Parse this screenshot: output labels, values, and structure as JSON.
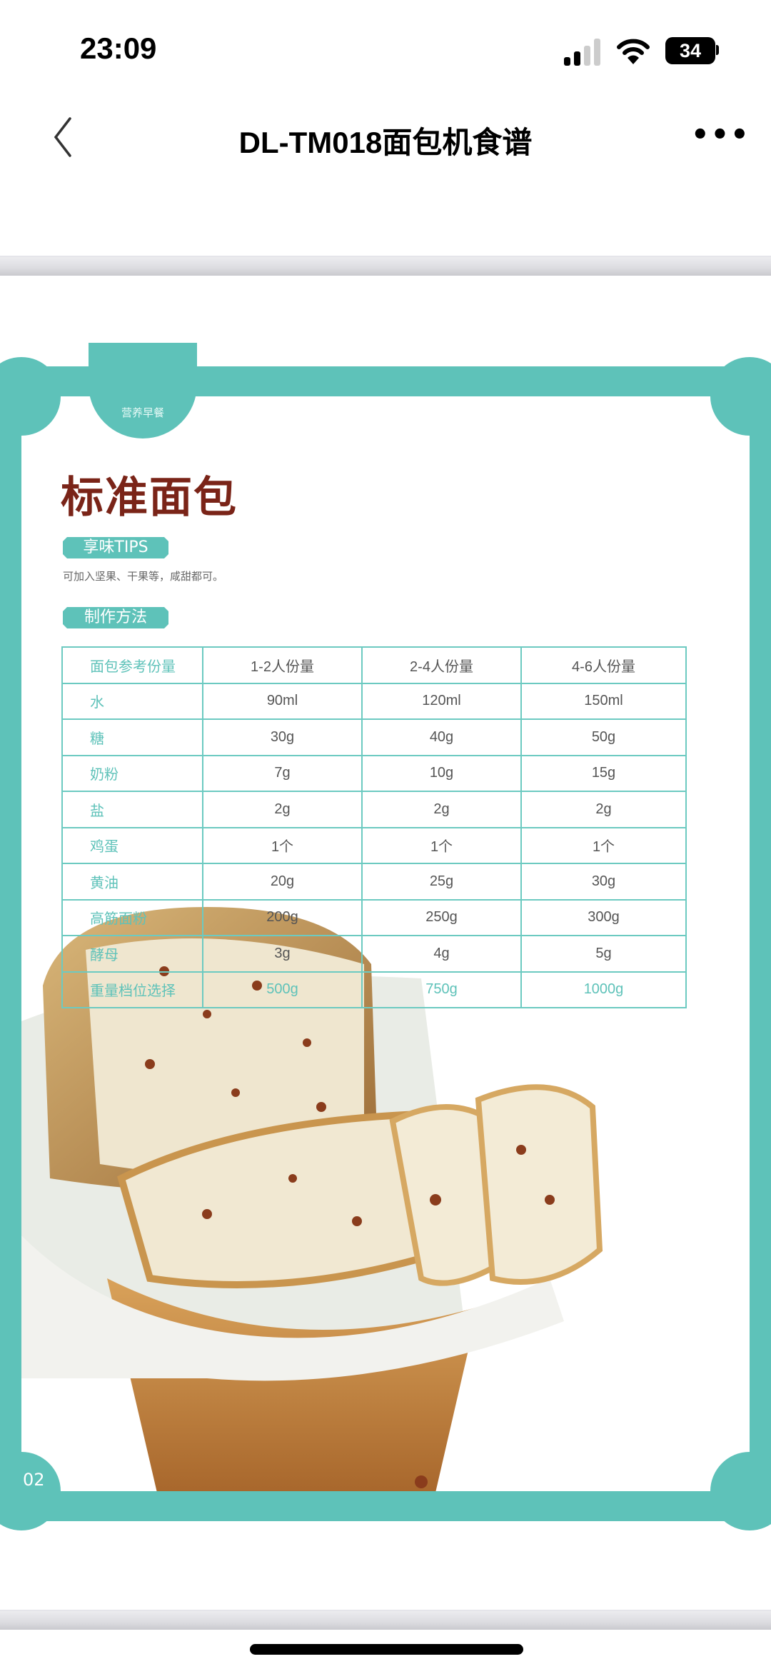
{
  "status_bar": {
    "time": "23:09",
    "battery": "34"
  },
  "nav": {
    "title": "DL-TM018面包机食谱",
    "more": "•••"
  },
  "page": {
    "tab_label": "营养早餐",
    "title": "标准面包",
    "tips_label": "享味TIPS",
    "tips_text": "可加入坚果、干果等，咸甜都可。",
    "method_label": "制作方法",
    "page_number": "02",
    "accent_color": "#5ec2b9",
    "title_color": "#7a2418"
  },
  "table": {
    "headers": [
      "面包参考份量",
      "1-2人份量",
      "2-4人份量",
      "4-6人份量"
    ],
    "rows": [
      [
        "水",
        "90ml",
        "120ml",
        "150ml"
      ],
      [
        "糖",
        "30g",
        "40g",
        "50g"
      ],
      [
        "奶粉",
        "7g",
        "10g",
        "15g"
      ],
      [
        "盐",
        "2g",
        "2g",
        "2g"
      ],
      [
        "鸡蛋",
        "1个",
        "1个",
        "1个"
      ],
      [
        "黄油",
        "20g",
        "25g",
        "30g"
      ],
      [
        "高筋面粉",
        "200g",
        "250g",
        "300g"
      ],
      [
        "酵母",
        "3g",
        "4g",
        "5g"
      ],
      [
        "重量档位选择",
        "500g",
        "750g",
        "1000g"
      ]
    ]
  }
}
